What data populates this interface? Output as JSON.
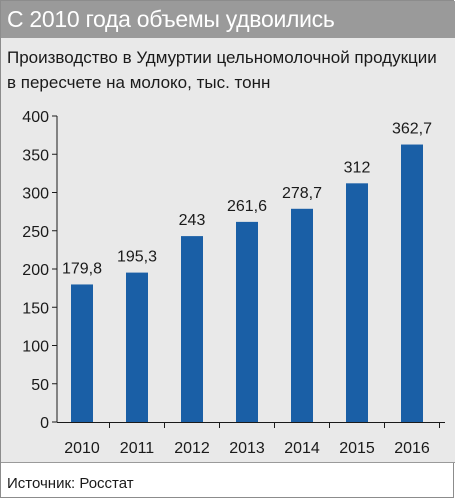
{
  "header": {
    "title": "С 2010 года объемы удвоились",
    "subtitle_line1": "Производство в Удмуртии цельномолочной продукции",
    "subtitle_line2": "в пересчете на молоко, тыс. тонн"
  },
  "footer": {
    "source": "Источник: Росстат"
  },
  "colors": {
    "bar": "#1a5fa6",
    "panel": "#e9e9e9",
    "title_bar": "#9a9a9a"
  },
  "chart_data": {
    "type": "bar",
    "categories": [
      "2010",
      "2011",
      "2012",
      "2013",
      "2014",
      "2015",
      "2016"
    ],
    "values": [
      179.8,
      195.3,
      243,
      261.6,
      278.7,
      312,
      362.7
    ],
    "value_labels": [
      "179,8",
      "195,3",
      "243",
      "261,6",
      "278,7",
      "312",
      "362,7"
    ],
    "ylim": [
      0,
      400
    ],
    "yticks": [
      0,
      50,
      100,
      150,
      200,
      250,
      300,
      350,
      400
    ],
    "grid": false,
    "legend": "none"
  }
}
